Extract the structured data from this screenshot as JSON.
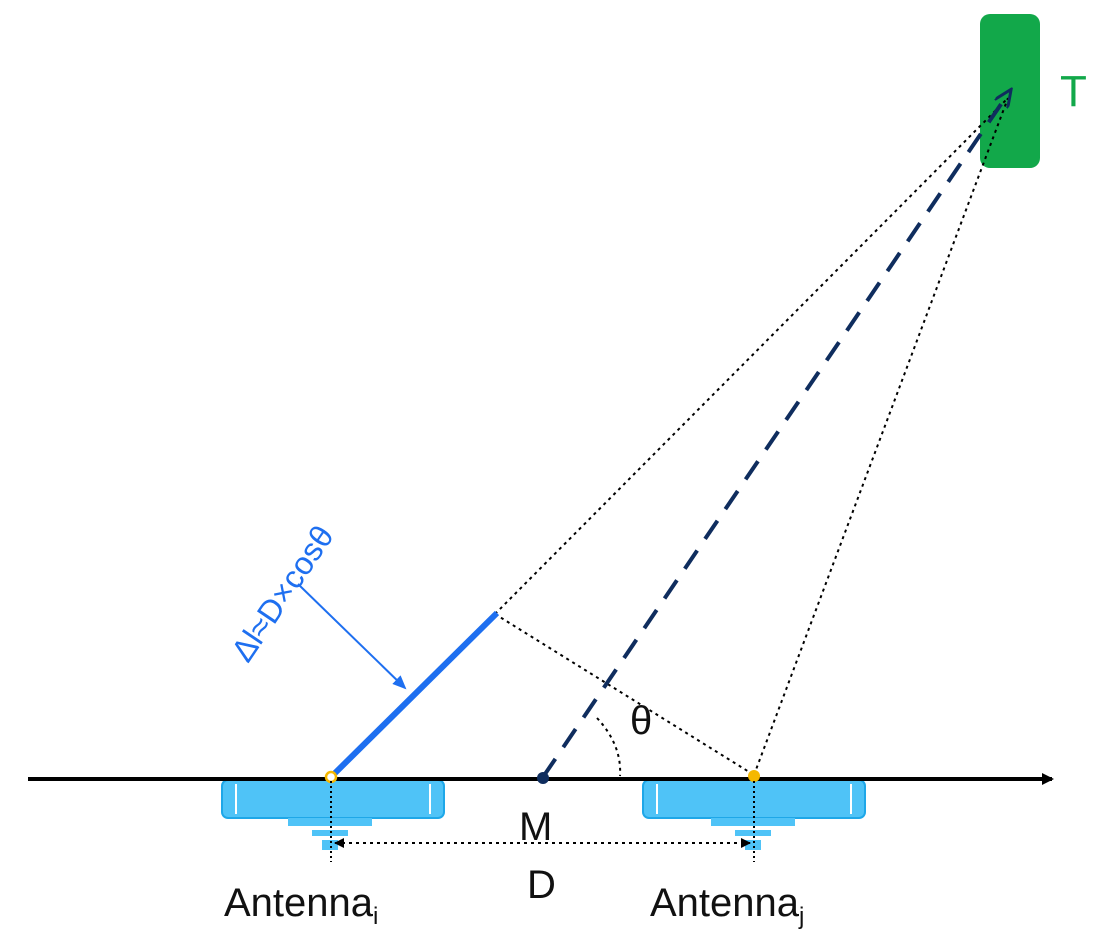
{
  "target": {
    "label": "T"
  },
  "formula": {
    "text": "Δl≈D×cosθ"
  },
  "angle": {
    "label": "θ"
  },
  "midpoint": {
    "label": "M"
  },
  "baseline": {
    "distance_label": "D"
  },
  "antenna_i": {
    "name": "Antenna",
    "subscript": "i"
  },
  "antenna_j": {
    "name": "Antenna",
    "subscript": "j"
  },
  "colors": {
    "axis": "#000000",
    "antenna_fill": "#4fc3f7",
    "antenna_stroke": "#1ea7e8",
    "path_difference": "#1e6ff0",
    "main_ray": "#0f2d5e",
    "target_fill": "#12a84a",
    "antenna_point": "#f5b800"
  }
}
